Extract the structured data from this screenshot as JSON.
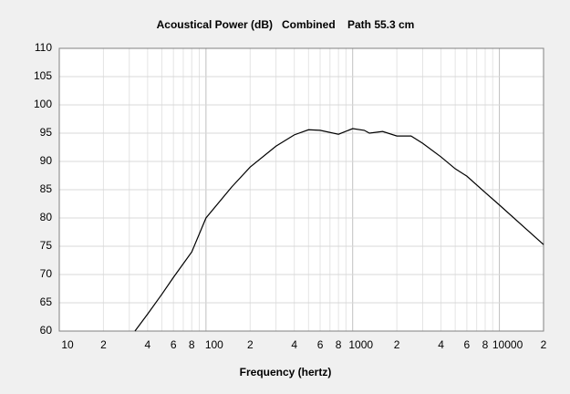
{
  "chart_data": {
    "type": "line",
    "title": "Acoustical Power (dB)   Combined    Path 55.3 cm",
    "x_label": "Frequency (hertz)",
    "x": [
      32.8,
      40,
      50,
      60,
      80,
      100,
      150,
      200,
      300,
      400,
      500,
      600,
      800,
      1000,
      1200,
      1300,
      1600,
      2000,
      2500,
      3000,
      4000,
      5000,
      6000,
      8000,
      10000,
      15000,
      20000
    ],
    "series": [
      {
        "name": "Acoustical Power",
        "color": "#000000",
        "values": [
          60,
          63,
          66.5,
          69.5,
          74,
          80,
          85.5,
          89,
          92.7,
          94.7,
          95.6,
          95.5,
          94.8,
          95.8,
          95.5,
          95,
          95.3,
          94.5,
          94.5,
          93.2,
          90.8,
          88.7,
          87.4,
          84.5,
          82.3,
          78.2,
          75.3
        ]
      }
    ],
    "xscale": "log",
    "xlim": [
      10,
      20000
    ],
    "xticks": [
      10,
      {
        "value": 20,
        "label": "2"
      },
      {
        "value": 40,
        "label": "4"
      },
      {
        "value": 60,
        "label": "6"
      },
      {
        "value": 80,
        "label": "8"
      },
      100,
      {
        "value": 200,
        "label": "2"
      },
      {
        "value": 400,
        "label": "4"
      },
      {
        "value": 600,
        "label": "6"
      },
      {
        "value": 800,
        "label": "8"
      },
      1000,
      {
        "value": 2000,
        "label": "2"
      },
      {
        "value": 4000,
        "label": "4"
      },
      {
        "value": 6000,
        "label": "6"
      },
      {
        "value": 8000,
        "label": "8"
      },
      10000,
      {
        "value": 20000,
        "label": "2"
      }
    ],
    "xminor": [
      30,
      50,
      70,
      90,
      300,
      500,
      700,
      900,
      3000,
      5000,
      7000,
      9000
    ],
    "ylim": [
      60,
      110
    ],
    "yticks": [
      60,
      65,
      70,
      75,
      80,
      85,
      90,
      95,
      100,
      105,
      110
    ],
    "grid": true
  }
}
